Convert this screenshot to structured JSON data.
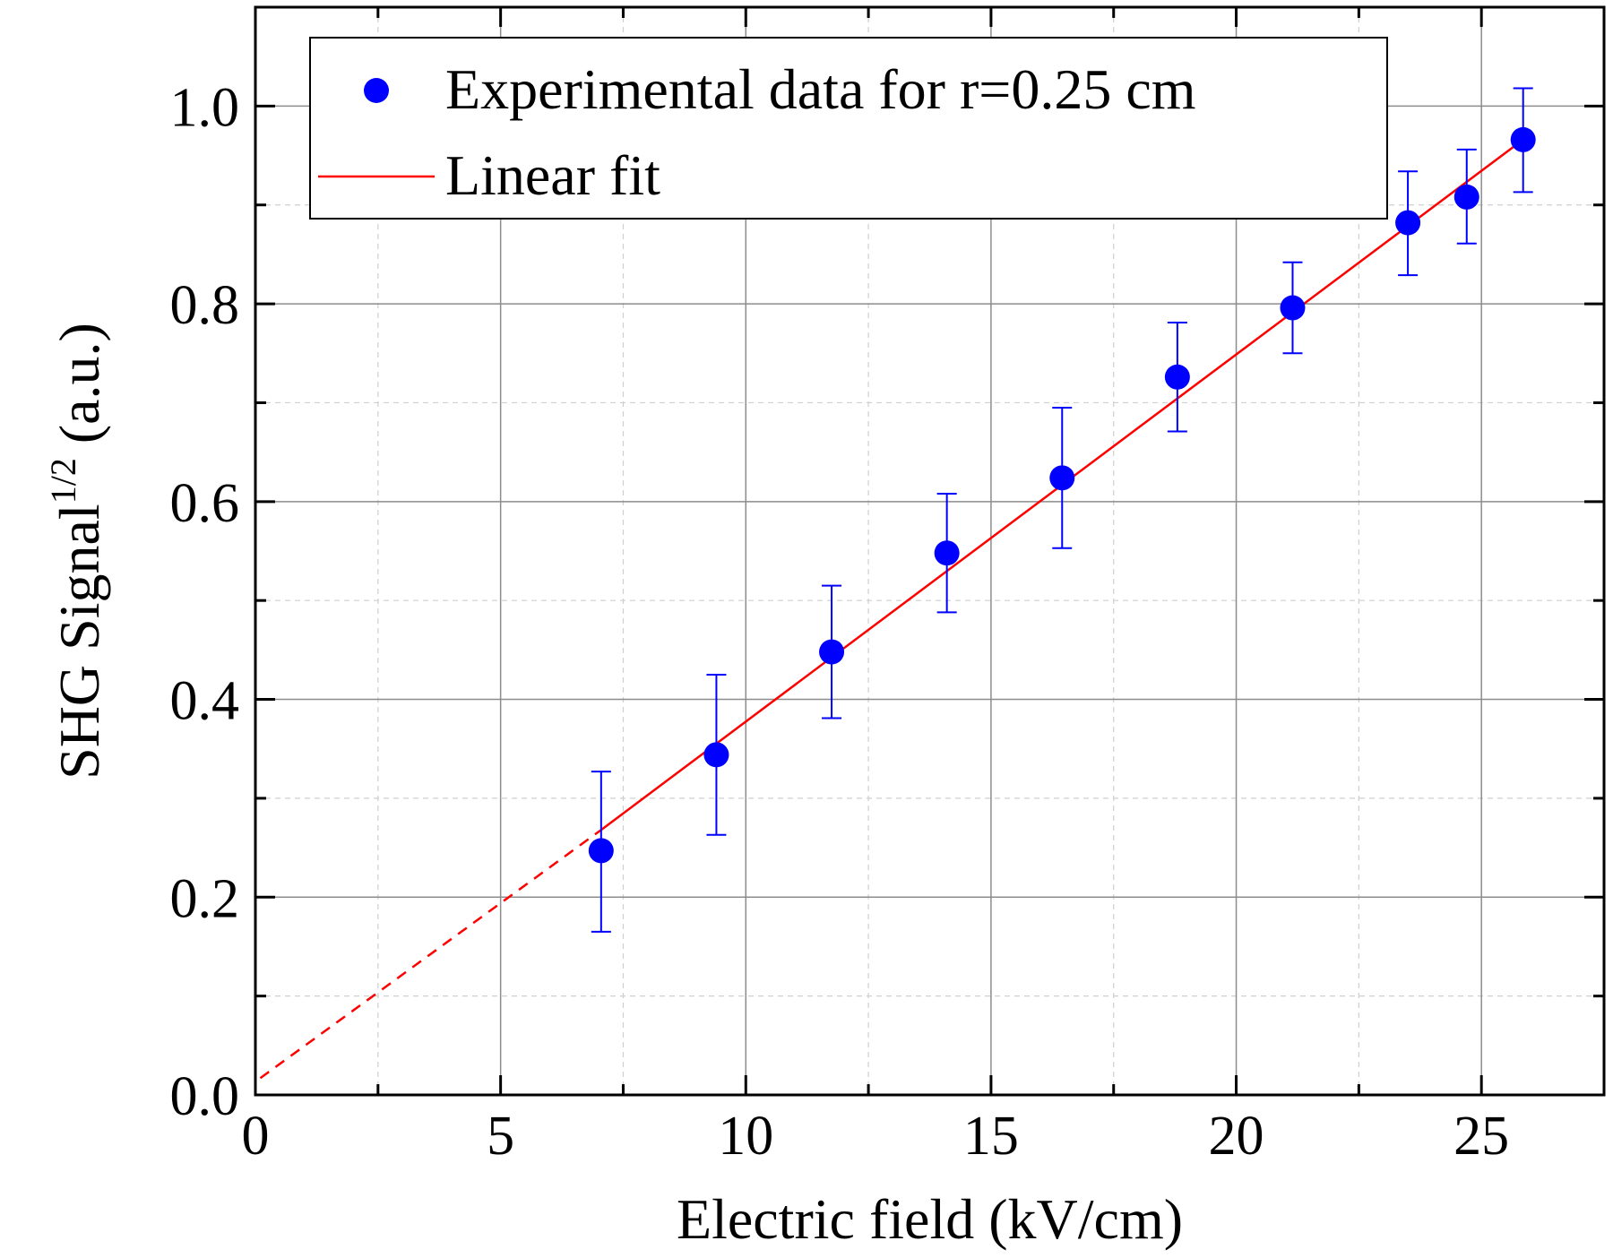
{
  "chart_data": {
    "type": "scatter",
    "xlabel": "Electric field (kV/cm)",
    "ylabel_main": "SHG Signal",
    "ylabel_sup": "1/2",
    "ylabel_tail": " (a.u.)",
    "xlim": [
      0,
      27.5
    ],
    "ylim": [
      0,
      1.1
    ],
    "xticks": [
      0,
      5,
      10,
      15,
      20,
      25
    ],
    "xtick_labels": [
      "0",
      "5",
      "10",
      "15",
      "20",
      "25"
    ],
    "yticks": [
      0.0,
      0.2,
      0.4,
      0.6,
      0.8,
      1.0
    ],
    "ytick_labels": [
      "0.0",
      "0.2",
      "0.4",
      "0.6",
      "0.8",
      "1.0"
    ],
    "grid": true,
    "legend_position": "top",
    "series": [
      {
        "name": "Experimental data for r=0.25 cm",
        "kind": "scatter-errorbar",
        "color": "#0000ff",
        "x": [
          7.05,
          9.4,
          11.75,
          14.1,
          16.45,
          18.8,
          21.15,
          23.5,
          24.7,
          25.85
        ],
        "y": [
          0.247,
          0.344,
          0.448,
          0.548,
          0.624,
          0.726,
          0.796,
          0.882,
          0.908,
          0.966
        ],
        "err_low": [
          0.165,
          0.263,
          0.381,
          0.488,
          0.553,
          0.671,
          0.75,
          0.829,
          0.861,
          0.913
        ],
        "err_high": [
          0.327,
          0.425,
          0.515,
          0.608,
          0.695,
          0.781,
          0.842,
          0.934,
          0.956,
          1.018
        ]
      },
      {
        "name": "Linear fit",
        "kind": "line",
        "color": "#ff0000",
        "x": [
          7.05,
          25.85
        ],
        "y": [
          0.268,
          0.966
        ]
      },
      {
        "name": "",
        "kind": "line-dashed",
        "color": "#ff0000",
        "x": [
          0.1,
          7.05
        ],
        "y": [
          0.017,
          0.268
        ]
      }
    ]
  }
}
